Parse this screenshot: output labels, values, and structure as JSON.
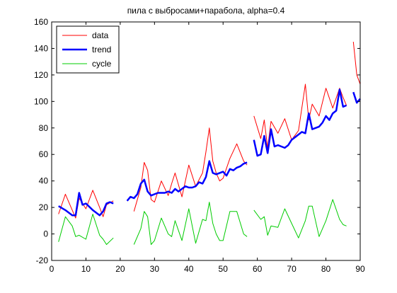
{
  "chart_data": {
    "type": "line",
    "title": "пила с выбросами+парабола, alpha=0.4",
    "xlabel": "",
    "ylabel": "",
    "xlim": [
      0,
      90
    ],
    "ylim": [
      -20,
      160
    ],
    "xticks": [
      0,
      10,
      20,
      30,
      40,
      50,
      60,
      70,
      80,
      90
    ],
    "yticks": [
      -20,
      0,
      20,
      40,
      60,
      80,
      100,
      120,
      140,
      160
    ],
    "grid": false,
    "legend_position": "top-left",
    "series": [
      {
        "name": "data",
        "color": "#ff0000",
        "x": [
          2,
          4,
          6,
          7,
          8,
          10,
          12,
          14,
          15,
          16,
          18,
          null,
          22,
          24,
          26,
          27,
          28,
          29,
          30,
          32,
          34,
          35,
          36,
          38,
          40,
          42,
          44,
          45,
          46,
          47,
          48,
          49,
          50,
          52,
          54,
          56,
          57,
          null,
          59,
          61,
          62,
          63,
          64,
          66,
          68,
          70,
          72,
          74,
          75,
          76,
          78,
          80,
          82,
          84,
          85,
          86,
          null,
          88,
          89,
          90
        ],
        "y": [
          15,
          30,
          18,
          12,
          27,
          19,
          33,
          20,
          13,
          22,
          25,
          36,
          null,
          17,
          35,
          54,
          48,
          26,
          24,
          40,
          29,
          38,
          46,
          28,
          52,
          36,
          46,
          62,
          80,
          55,
          46,
          40,
          42,
          57,
          68,
          55,
          52,
          null,
          89,
          72,
          86,
          65,
          85,
          76,
          87,
          71,
          78,
          113,
          86,
          98,
          89,
          110,
          95,
          110,
          103,
          97,
          null,
          145,
          120,
          113
        ]
      },
      {
        "name": "trend",
        "color": "#0000ff",
        "x": [
          2,
          4,
          6,
          7,
          8,
          9,
          10,
          12,
          14,
          15,
          16,
          17,
          18,
          null,
          22,
          23,
          24,
          25,
          26,
          27,
          28,
          29,
          30,
          31,
          32,
          33,
          34,
          35,
          36,
          37,
          38,
          39,
          40,
          41,
          42,
          43,
          44,
          45,
          46,
          47,
          48,
          49,
          50,
          51,
          52,
          53,
          54,
          55,
          56,
          57,
          null,
          59,
          60,
          61,
          62,
          63,
          64,
          65,
          66,
          67,
          68,
          69,
          70,
          71,
          72,
          73,
          74,
          75,
          76,
          77,
          78,
          79,
          80,
          81,
          82,
          83,
          84,
          85,
          86,
          null,
          88,
          89,
          90
        ],
        "y": [
          21,
          18,
          14,
          14,
          31,
          22,
          23,
          18,
          14,
          17,
          23,
          24,
          23,
          null,
          25,
          28,
          27,
          30,
          38,
          41,
          32,
          29,
          30,
          31,
          31,
          31,
          32,
          31,
          34,
          32,
          34,
          36,
          35,
          35,
          36,
          39,
          38,
          43,
          55,
          46,
          45,
          46,
          47,
          44,
          49,
          48,
          50,
          51,
          53,
          54,
          null,
          71,
          59,
          60,
          74,
          61,
          79,
          66,
          67,
          66,
          65,
          67,
          71,
          73,
          75,
          77,
          76,
          91,
          79,
          80,
          81,
          84,
          89,
          86,
          91,
          93,
          109,
          96,
          97,
          null,
          107,
          99,
          102
        ]
      },
      {
        "name": "cycle",
        "color": "#00cc00",
        "x": [
          2,
          4,
          6,
          7,
          8,
          10,
          12,
          14,
          15,
          16,
          18,
          null,
          22,
          24,
          26,
          27,
          28,
          29,
          30,
          32,
          34,
          35,
          36,
          38,
          40,
          42,
          44,
          45,
          46,
          47,
          48,
          49,
          50,
          52,
          54,
          56,
          57,
          null,
          59,
          61,
          62,
          63,
          64,
          66,
          68,
          70,
          72,
          74,
          75,
          76,
          78,
          80,
          82,
          84,
          85,
          86
        ],
        "y": [
          -6,
          13,
          6,
          -2,
          -1,
          -4,
          15,
          -1,
          -4,
          -8,
          -3,
          13,
          null,
          -8,
          4,
          17,
          13,
          -8,
          -5,
          12,
          0,
          -2,
          10,
          -5,
          19,
          -7,
          11,
          10,
          24,
          8,
          0,
          -5,
          -5,
          17,
          17,
          0,
          -2,
          null,
          18,
          11,
          13,
          -1,
          6,
          5,
          19,
          8,
          -3,
          10,
          21,
          21,
          -2,
          10,
          26,
          11,
          7,
          6
        ]
      }
    ]
  }
}
